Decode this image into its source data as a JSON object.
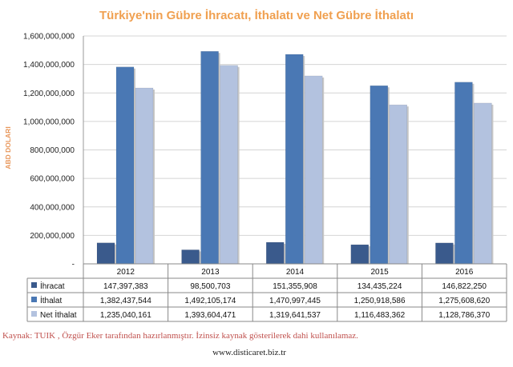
{
  "title": "Türkiye'nin Gübre İhracatı, İthalatı ve Net Gübre İthalatı",
  "ylabel": "ABD DOLARI",
  "source_note": "Kaynak: TUIK , Özgür Eker tarafından hazırlanmıştır. İzinsiz kaynak gösterilerek dahi kullanılamaz.",
  "website": "www.disticaret.biz.tr",
  "chart_data": {
    "type": "bar",
    "categories": [
      "2012",
      "2013",
      "2014",
      "2015",
      "2016"
    ],
    "ylim": [
      0,
      1600000000
    ],
    "yticks": [
      0,
      200000000,
      400000000,
      600000000,
      800000000,
      1000000000,
      1200000000,
      1400000000,
      1600000000
    ],
    "ytick_labels": [
      "-",
      "200,000,000",
      "400,000,000",
      "600,000,000",
      "800,000,000",
      "1,000,000,000",
      "1,200,000,000",
      "1,400,000,000",
      "1,600,000,000"
    ],
    "grid": true,
    "legend": "data-table",
    "series": [
      {
        "name": "İhracat",
        "color": "#3a5a8c",
        "values": [
          147397383,
          98500703,
          151355908,
          134435224,
          146822250
        ],
        "labels": [
          "147,397,383",
          "98,500,703",
          "151,355,908",
          "134,435,224",
          "146,822,250"
        ]
      },
      {
        "name": "İthalat",
        "color": "#4a78b4",
        "values": [
          1382437544,
          1492105174,
          1470997445,
          1250918586,
          1275608620
        ],
        "labels": [
          "1,382,437,544",
          "1,492,105,174",
          "1,470,997,445",
          "1,250,918,586",
          "1,275,608,620"
        ]
      },
      {
        "name": "Net İthalat",
        "color": "#b3c2df",
        "values": [
          1235040161,
          1393604471,
          1319641537,
          1116483362,
          1128786370
        ],
        "labels": [
          "1,235,040,161",
          "1,393,604,471",
          "1,319,641,537",
          "1,116,483,362",
          "1,128,786,370"
        ]
      }
    ]
  }
}
